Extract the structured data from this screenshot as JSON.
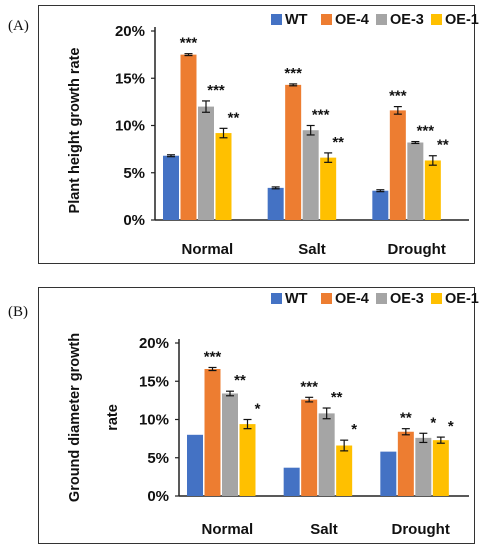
{
  "panels": [
    {
      "label": "(A)"
    },
    {
      "label": "(B)"
    }
  ],
  "colors": {
    "WT": "#4472c4",
    "OE-4": "#ed7d31",
    "OE-3": "#a5a5a5",
    "OE-1": "#ffc000"
  },
  "chart_data": [
    {
      "type": "bar",
      "ylabel": "Plant height growth rate",
      "xlabel": "",
      "categories": [
        "Normal",
        "Salt",
        "Drought"
      ],
      "ylim": [
        0,
        20
      ],
      "yticks": [
        "0%",
        "5%",
        "10%",
        "15%",
        "20%"
      ],
      "legend": "top",
      "series": [
        {
          "name": "WT",
          "values": [
            6.8,
            3.4,
            3.1
          ],
          "errors": [
            0.1,
            0.1,
            0.1
          ],
          "sig": [
            "",
            "",
            ""
          ]
        },
        {
          "name": "OE-4",
          "values": [
            17.5,
            14.3,
            11.6
          ],
          "errors": [
            0.1,
            0.1,
            0.4
          ],
          "sig": [
            "***",
            "***",
            "***"
          ]
        },
        {
          "name": "OE-3",
          "values": [
            12.0,
            9.5,
            8.2
          ],
          "errors": [
            0.6,
            0.5,
            0.1
          ],
          "sig": [
            "***",
            "***",
            "***"
          ]
        },
        {
          "name": "OE-1",
          "values": [
            9.2,
            6.6,
            6.3
          ],
          "errors": [
            0.5,
            0.5,
            0.5
          ],
          "sig": [
            "**",
            "**",
            "**"
          ]
        }
      ]
    },
    {
      "type": "bar",
      "ylabel": "Ground diameter growth rate",
      "xlabel": "",
      "categories": [
        "Normal",
        "Salt",
        "Drought"
      ],
      "ylim": [
        0,
        20
      ],
      "yticks": [
        "0%",
        "5%",
        "10%",
        "15%",
        "20%"
      ],
      "legend": "top",
      "series": [
        {
          "name": "WT",
          "values": [
            8.0,
            3.7,
            5.8
          ],
          "errors": [
            0,
            0,
            0
          ],
          "sig": [
            "",
            "",
            ""
          ]
        },
        {
          "name": "OE-4",
          "values": [
            16.6,
            12.6,
            8.4
          ],
          "errors": [
            0.2,
            0.3,
            0.4
          ],
          "sig": [
            "***",
            "***",
            "**"
          ]
        },
        {
          "name": "OE-3",
          "values": [
            13.4,
            10.8,
            7.6
          ],
          "errors": [
            0.3,
            0.7,
            0.6
          ],
          "sig": [
            "**",
            "**",
            "*"
          ]
        },
        {
          "name": "OE-1",
          "values": [
            9.4,
            6.6,
            7.3
          ],
          "errors": [
            0.6,
            0.7,
            0.4
          ],
          "sig": [
            "*",
            "*",
            "*"
          ]
        }
      ]
    }
  ]
}
